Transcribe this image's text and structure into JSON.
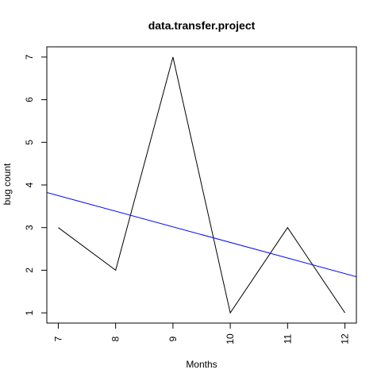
{
  "chart_data": {
    "type": "line",
    "title": "data.transfer.project",
    "xlabel": "Months",
    "ylabel": "bug count",
    "x": [
      7,
      8,
      9,
      10,
      11,
      12
    ],
    "series": [
      {
        "values": [
          3,
          2,
          7,
          1,
          3,
          1
        ],
        "color": "#000000"
      },
      {
        "kind": "trend-line",
        "x": [
          6.78,
          12.22
        ],
        "values": [
          3.83,
          1.84
        ],
        "color": "#0000ff"
      }
    ],
    "xlim": [
      6.8,
      12.2
    ],
    "ylim": [
      0.76,
      7.24
    ],
    "x_ticks": [
      7,
      8,
      9,
      10,
      11,
      12
    ],
    "y_ticks": [
      1,
      2,
      3,
      4,
      5,
      6,
      7
    ],
    "grid": false,
    "legend": "none"
  }
}
